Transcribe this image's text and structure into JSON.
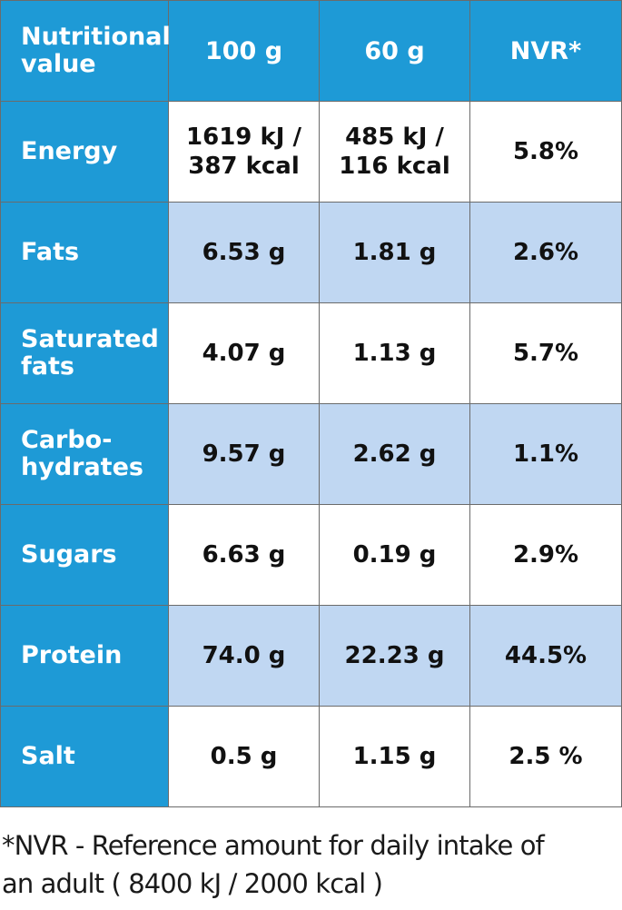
{
  "table": {
    "headers": [
      "Nutritional value",
      "100 g",
      "60 g",
      "NVR*"
    ],
    "rows": [
      {
        "label": "Energy",
        "per100": "1619 kJ / 387 kcal",
        "per60": "485 kJ / 116 kcal",
        "nvr": "5.8%"
      },
      {
        "label": "Fats",
        "per100": "6.53 g",
        "per60": "1.81 g",
        "nvr": "2.6%"
      },
      {
        "label": "Saturated fats",
        "per100": "4.07 g",
        "per60": "1.13 g",
        "nvr": "5.7%"
      },
      {
        "label": "Carbo-hydrates",
        "per100": "9.57 g",
        "per60": "2.62 g",
        "nvr": "1.1%"
      },
      {
        "label": "Sugars",
        "per100": "6.63 g",
        "per60": "0.19 g",
        "nvr": "2.9%"
      },
      {
        "label": "Protein",
        "per100": "74.0 g",
        "per60": "22.23 g",
        "nvr": "44.5%"
      },
      {
        "label": "Salt",
        "per100": "0.5 g",
        "per60": "1.15 g",
        "nvr": "2.5 %"
      }
    ]
  },
  "footnote": {
    "line1": "*NVR - Reference amount for daily intake of",
    "line2": "an adult ( 8400 kJ / 2000 kcal )"
  },
  "colors": {
    "header_blue": "#1e9ad6",
    "shade_blue": "#c0d7f2",
    "grid": "#6b6b6b"
  }
}
